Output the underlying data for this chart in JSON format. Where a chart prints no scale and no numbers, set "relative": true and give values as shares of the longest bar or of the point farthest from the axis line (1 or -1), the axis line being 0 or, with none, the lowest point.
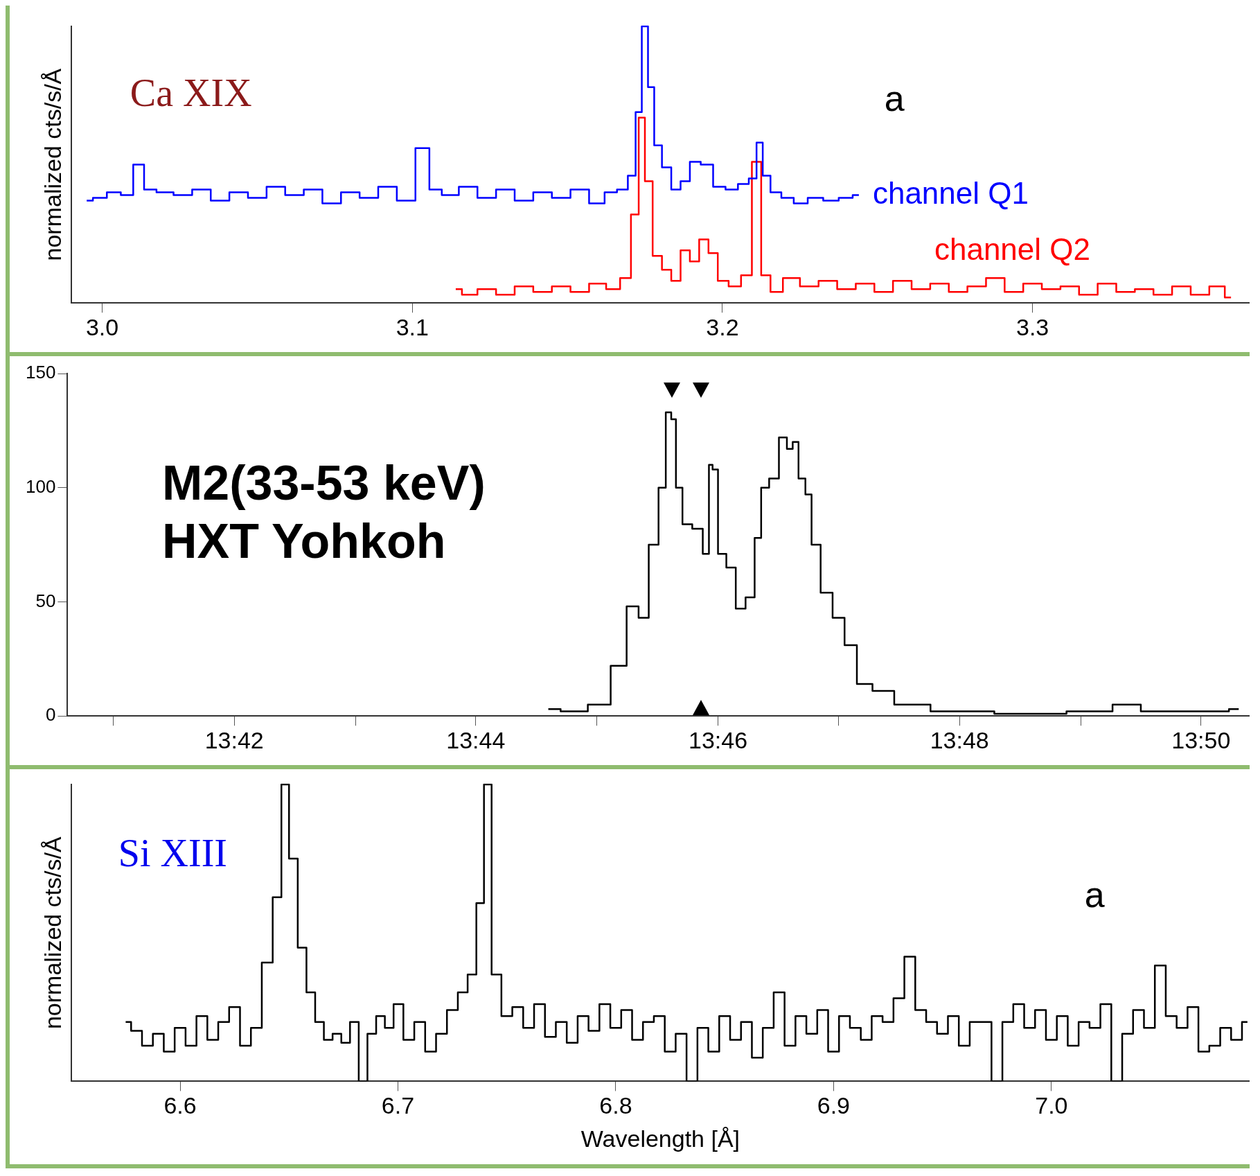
{
  "chart_data": [
    {
      "type": "step",
      "relative": true,
      "ylabel": "normalized cts/s/Å",
      "xlim": [
        2.99,
        3.37
      ],
      "xticks": [
        {
          "value": 3,
          "label": "3.0"
        },
        3.1,
        3.2,
        3.3
      ],
      "annotations": [
        "Ca XIX",
        "a"
      ],
      "series": [
        {
          "name": "channel Q1",
          "color": "#0000ff",
          "x": [
            2.995,
            2.999,
            3.004,
            3.008,
            3.012,
            3.015,
            3.02,
            3.026,
            3.032,
            3.038,
            3.044,
            3.05,
            3.056,
            3.062,
            3.068,
            3.074,
            3.08,
            3.086,
            3.092,
            3.098,
            3.104,
            3.107,
            3.112,
            3.118,
            3.124,
            3.13,
            3.136,
            3.142,
            3.148,
            3.154,
            3.16,
            3.164,
            3.168,
            3.171,
            3.173,
            3.175,
            3.177,
            3.179,
            3.182,
            3.185,
            3.188,
            3.191,
            3.195,
            3.199,
            3.203,
            3.207,
            3.21,
            3.212,
            3.214,
            3.217,
            3.221,
            3.225,
            3.23,
            3.235,
            3.24,
            3.244
          ],
          "values": [
            0.37,
            0.38,
            0.4,
            0.39,
            0.5,
            0.41,
            0.4,
            0.39,
            0.41,
            0.37,
            0.4,
            0.38,
            0.42,
            0.39,
            0.41,
            0.36,
            0.4,
            0.38,
            0.42,
            0.37,
            0.56,
            0.41,
            0.39,
            0.42,
            0.38,
            0.41,
            0.37,
            0.4,
            0.38,
            0.41,
            0.36,
            0.4,
            0.41,
            0.46,
            0.69,
            1.0,
            0.78,
            0.57,
            0.49,
            0.41,
            0.44,
            0.51,
            0.5,
            0.42,
            0.41,
            0.43,
            0.45,
            0.58,
            0.46,
            0.4,
            0.38,
            0.36,
            0.38,
            0.37,
            0.38,
            0.39
          ]
        },
        {
          "name": "channel Q2",
          "color": "#ff0000",
          "x": [
            3.114,
            3.118,
            3.124,
            3.13,
            3.136,
            3.142,
            3.148,
            3.154,
            3.16,
            3.165,
            3.169,
            3.172,
            3.174,
            3.176,
            3.179,
            3.182,
            3.185,
            3.188,
            3.191,
            3.194,
            3.197,
            3.2,
            3.204,
            3.208,
            3.211,
            3.214,
            3.217,
            3.222,
            3.228,
            3.234,
            3.24,
            3.246,
            3.252,
            3.258,
            3.264,
            3.27,
            3.276,
            3.282,
            3.288,
            3.294,
            3.3,
            3.306,
            3.312,
            3.318,
            3.324,
            3.33,
            3.336,
            3.342,
            3.348,
            3.354,
            3.36,
            3.364
          ],
          "values": [
            0.05,
            0.03,
            0.05,
            0.03,
            0.06,
            0.04,
            0.06,
            0.04,
            0.07,
            0.05,
            0.09,
            0.32,
            0.67,
            0.44,
            0.17,
            0.12,
            0.08,
            0.19,
            0.15,
            0.23,
            0.18,
            0.08,
            0.06,
            0.1,
            0.51,
            0.1,
            0.04,
            0.09,
            0.06,
            0.08,
            0.05,
            0.07,
            0.04,
            0.08,
            0.05,
            0.07,
            0.04,
            0.06,
            0.09,
            0.04,
            0.07,
            0.05,
            0.06,
            0.03,
            0.07,
            0.04,
            0.05,
            0.03,
            0.06,
            0.03,
            0.06,
            0.02
          ]
        }
      ]
    },
    {
      "type": "step",
      "xlim": [
        13.677,
        13.84
      ],
      "xticks": [
        {
          "value": 13.6833,
          "label": null
        },
        {
          "value": 13.7,
          "label": "13:42"
        },
        {
          "value": 13.7167,
          "label": null
        },
        {
          "value": 13.7333,
          "label": "13:44"
        },
        {
          "value": 13.75,
          "label": null
        },
        {
          "value": 13.7667,
          "label": "13:46"
        },
        {
          "value": 13.7833,
          "label": null
        },
        {
          "value": 13.8,
          "label": "13:48"
        },
        {
          "value": 13.8167,
          "label": null
        },
        {
          "value": 13.8333,
          "label": "13:50"
        }
      ],
      "ylim": [
        0,
        150
      ],
      "yticks": [
        0,
        50,
        100,
        150
      ],
      "annotations": [
        "M2(33-53 keV)",
        "HXT Yohkoh"
      ],
      "series": [
        {
          "color": "#000000",
          "x": [
            13.7433,
            13.7467,
            13.7508,
            13.753,
            13.7552,
            13.7563,
            13.758,
            13.759,
            13.76,
            13.7605,
            13.7613,
            13.7623,
            13.764,
            13.7652,
            13.7657,
            13.7662,
            13.7672,
            13.7685,
            13.7698,
            13.7712,
            13.7723,
            13.773,
            13.7745,
            13.7757,
            13.7767,
            13.7773,
            13.7783,
            13.7792,
            13.78,
            13.7817,
            13.7833,
            13.785,
            13.7867,
            13.7893,
            13.7927,
            13.7993,
            13.8103,
            13.8192,
            13.823,
            13.827,
            13.8358,
            13.8385
          ],
          "values": [
            3,
            2,
            5,
            22,
            48,
            43,
            75,
            100,
            133,
            130,
            100,
            84,
            82,
            71,
            110,
            108,
            71,
            65,
            47,
            52,
            78,
            100,
            104,
            122,
            117,
            120,
            104,
            97,
            75,
            54,
            43,
            31,
            14,
            11,
            5,
            2,
            1,
            2,
            5,
            2,
            2,
            3
          ]
        }
      ]
    },
    {
      "type": "step",
      "relative": true,
      "xlabel": "Wavelength [Å]",
      "ylabel": "normalized cts/s/Å",
      "xlim": [
        6.55,
        7.091
      ],
      "xticks": [
        6.6,
        6.7,
        6.8,
        6.9,
        {
          "value": 7,
          "label": "7.0"
        }
      ],
      "annotations": [
        "Si XIII",
        "a"
      ],
      "series": [
        {
          "color": "#000000",
          "x": [
            6.575,
            6.58,
            6.585,
            6.59,
            6.595,
            6.6,
            6.605,
            6.61,
            6.615,
            6.62,
            6.625,
            6.63,
            6.635,
            6.64,
            6.645,
            6.648,
            6.652,
            6.656,
            6.66,
            6.664,
            6.668,
            6.672,
            6.676,
            6.68,
            6.684,
            6.688,
            6.692,
            6.696,
            6.7,
            6.705,
            6.71,
            6.715,
            6.72,
            6.725,
            6.73,
            6.734,
            6.738,
            6.741,
            6.745,
            6.75,
            6.755,
            6.76,
            6.765,
            6.77,
            6.775,
            6.78,
            6.785,
            6.79,
            6.795,
            6.8,
            6.805,
            6.81,
            6.815,
            6.82,
            6.825,
            6.83,
            6.835,
            6.84,
            6.845,
            6.85,
            6.855,
            6.86,
            6.865,
            6.87,
            6.875,
            6.88,
            6.885,
            6.89,
            6.895,
            6.9,
            6.905,
            6.91,
            6.915,
            6.92,
            6.925,
            6.93,
            6.935,
            6.94,
            6.945,
            6.95,
            6.955,
            6.96,
            6.965,
            6.97,
            6.975,
            6.98,
            6.985,
            6.99,
            6.995,
            7.0,
            7.005,
            7.01,
            7.015,
            7.02,
            7.025,
            7.03,
            7.035,
            7.04,
            7.045,
            7.05,
            7.055,
            7.06,
            7.065,
            7.07,
            7.075,
            7.08,
            7.085,
            7.09
          ],
          "values": [
            0.2,
            0.17,
            0.12,
            0.16,
            0.1,
            0.18,
            0.12,
            0.22,
            0.14,
            0.2,
            0.25,
            0.12,
            0.18,
            0.4,
            0.62,
            1.0,
            0.75,
            0.45,
            0.3,
            0.2,
            0.14,
            0.16,
            0.13,
            0.2,
            0,
            0.16,
            0.22,
            0.18,
            0.26,
            0.14,
            0.2,
            0.1,
            0.16,
            0.24,
            0.3,
            0.36,
            0.6,
            1.0,
            0.36,
            0.22,
            0.25,
            0.18,
            0.26,
            0.15,
            0.2,
            0.13,
            0.22,
            0.17,
            0.26,
            0.18,
            0.24,
            0.14,
            0.2,
            0.22,
            0.1,
            0.16,
            0,
            0.18,
            0.1,
            0.22,
            0.14,
            0.2,
            0.08,
            0.18,
            0.3,
            0.12,
            0.22,
            0.16,
            0.24,
            0.1,
            0.22,
            0.18,
            0.14,
            0.22,
            0.2,
            0.28,
            0.42,
            0.24,
            0.2,
            0.16,
            0.22,
            0.12,
            0.2,
            0.2,
            0,
            0.2,
            0.26,
            0.18,
            0.24,
            0.14,
            0.22,
            0.12,
            0.2,
            0.18,
            0.26,
            0,
            0.16,
            0.24,
            0.18,
            0.39,
            0.22,
            0.18,
            0.25,
            0.1,
            0.12,
            0.18,
            0.14,
            0.2
          ]
        }
      ]
    }
  ]
}
